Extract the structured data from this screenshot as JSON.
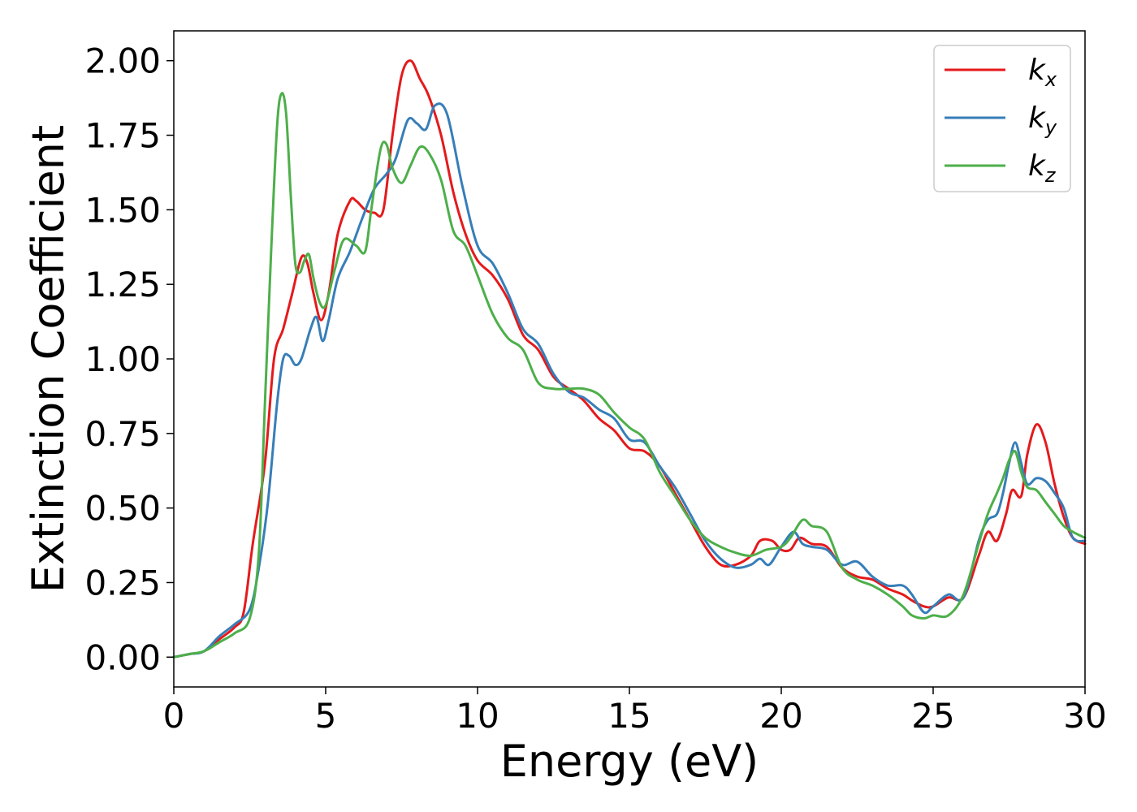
{
  "chart_data": {
    "type": "line",
    "xlabel": "Energy (eV)",
    "ylabel": "Extinction Coefficient",
    "xlim": [
      0,
      30
    ],
    "ylim": [
      -0.1,
      2.1
    ],
    "xticks": [
      0,
      5,
      10,
      15,
      20,
      25,
      30
    ],
    "xtick_labels": [
      "0",
      "5",
      "10",
      "15",
      "20",
      "25",
      "30"
    ],
    "yticks": [
      0,
      0.25,
      0.5,
      0.75,
      1.0,
      1.25,
      1.5,
      1.75,
      2.0
    ],
    "ytick_labels": [
      "0.00",
      "0.25",
      "0.50",
      "0.75",
      "1.00",
      "1.25",
      "1.50",
      "1.75",
      "2.00"
    ],
    "grid": false,
    "legend_position": "top-right",
    "series": [
      {
        "name": "k_x",
        "label_main": "k",
        "label_sub": "x",
        "color": "#e41a1c",
        "x": [
          0,
          0.5,
          1,
          1.5,
          2,
          2.3,
          2.6,
          3,
          3.3,
          3.6,
          3.9,
          4.2,
          4.4,
          4.6,
          4.85,
          5.1,
          5.4,
          5.8,
          6,
          6.3,
          6.6,
          6.9,
          7.2,
          7.5,
          7.8,
          8.1,
          8.4,
          8.8,
          9.2,
          9.6,
          10,
          10.5,
          11,
          11.5,
          12,
          12.5,
          13,
          13.5,
          14,
          14.5,
          15,
          15.5,
          16,
          16.5,
          17,
          17.5,
          18,
          18.5,
          19,
          19.3,
          19.7,
          20,
          20.3,
          20.6,
          21,
          21.5,
          22,
          22.5,
          23,
          23.5,
          24,
          24.3,
          24.7,
          25,
          25.5,
          26,
          26.5,
          26.8,
          27.1,
          27.4,
          27.6,
          27.9,
          28.1,
          28.4,
          28.7,
          29,
          29.3,
          29.6,
          30
        ],
        "y": [
          0,
          0.01,
          0.02,
          0.06,
          0.1,
          0.15,
          0.38,
          0.65,
          1.0,
          1.1,
          1.22,
          1.34,
          1.32,
          1.22,
          1.13,
          1.22,
          1.42,
          1.53,
          1.53,
          1.5,
          1.49,
          1.5,
          1.75,
          1.95,
          2.0,
          1.94,
          1.88,
          1.75,
          1.56,
          1.42,
          1.33,
          1.28,
          1.2,
          1.08,
          1.03,
          0.94,
          0.9,
          0.86,
          0.8,
          0.76,
          0.7,
          0.69,
          0.64,
          0.55,
          0.46,
          0.37,
          0.31,
          0.31,
          0.34,
          0.39,
          0.39,
          0.36,
          0.36,
          0.4,
          0.38,
          0.37,
          0.3,
          0.27,
          0.26,
          0.23,
          0.21,
          0.19,
          0.17,
          0.17,
          0.2,
          0.2,
          0.34,
          0.42,
          0.39,
          0.48,
          0.56,
          0.54,
          0.68,
          0.78,
          0.72,
          0.58,
          0.47,
          0.4,
          0.38
        ]
      },
      {
        "name": "k_y",
        "label_main": "k",
        "label_sub": "y",
        "color": "#377eb8",
        "x": [
          0,
          0.5,
          1,
          1.5,
          2,
          2.5,
          2.8,
          3.1,
          3.4,
          3.6,
          3.8,
          4.0,
          4.2,
          4.5,
          4.7,
          4.9,
          5.1,
          5.4,
          5.8,
          6.2,
          6.6,
          7,
          7.3,
          7.7,
          8,
          8.3,
          8.6,
          9,
          9.5,
          10,
          10.5,
          11,
          11.5,
          12,
          12.5,
          13,
          13.5,
          14,
          14.5,
          15,
          15.5,
          16,
          16.5,
          17,
          17.5,
          18,
          18.5,
          19,
          19.3,
          19.6,
          20,
          20.4,
          20.7,
          21,
          21.5,
          22,
          22.5,
          23,
          23.5,
          24,
          24.3,
          24.7,
          25,
          25.5,
          26,
          26.5,
          26.8,
          27.1,
          27.3,
          27.5,
          27.7,
          27.9,
          28.1,
          28.4,
          28.7,
          29,
          29.3,
          29.6,
          30
        ],
        "y": [
          0,
          0.01,
          0.02,
          0.07,
          0.11,
          0.16,
          0.3,
          0.52,
          0.85,
          1.0,
          1.01,
          0.98,
          1.0,
          1.1,
          1.14,
          1.06,
          1.13,
          1.27,
          1.36,
          1.47,
          1.57,
          1.62,
          1.67,
          1.8,
          1.79,
          1.77,
          1.85,
          1.82,
          1.58,
          1.38,
          1.32,
          1.22,
          1.1,
          1.05,
          0.95,
          0.89,
          0.87,
          0.83,
          0.8,
          0.73,
          0.72,
          0.64,
          0.57,
          0.48,
          0.39,
          0.33,
          0.3,
          0.31,
          0.33,
          0.31,
          0.37,
          0.42,
          0.38,
          0.37,
          0.36,
          0.31,
          0.32,
          0.27,
          0.24,
          0.24,
          0.21,
          0.15,
          0.17,
          0.21,
          0.2,
          0.39,
          0.46,
          0.48,
          0.55,
          0.65,
          0.72,
          0.65,
          0.58,
          0.6,
          0.59,
          0.55,
          0.5,
          0.4,
          0.39
        ]
      },
      {
        "name": "k_z",
        "label_main": "k",
        "label_sub": "z",
        "color": "#4daf4a",
        "x": [
          0,
          0.5,
          1,
          1.5,
          2,
          2.5,
          2.8,
          3.0,
          3.2,
          3.4,
          3.55,
          3.7,
          3.85,
          4.0,
          4.15,
          4.3,
          4.45,
          4.6,
          4.8,
          5.0,
          5.3,
          5.6,
          6.0,
          6.3,
          6.5,
          6.8,
          7,
          7.2,
          7.5,
          7.8,
          8.1,
          8.4,
          8.8,
          9.2,
          9.6,
          10,
          10.5,
          11,
          11.5,
          12,
          12.5,
          13,
          13.5,
          14,
          14.5,
          15,
          15.5,
          16,
          16.5,
          17,
          17.5,
          18,
          18.5,
          19,
          19.5,
          20,
          20.3,
          20.7,
          21,
          21.5,
          22,
          22.5,
          23,
          23.5,
          24,
          24.3,
          24.7,
          25,
          25.5,
          26,
          26.5,
          26.8,
          27.1,
          27.3,
          27.5,
          27.7,
          27.9,
          28.1,
          28.4,
          28.7,
          29,
          29.3,
          29.6,
          30
        ],
        "y": [
          0,
          0.01,
          0.02,
          0.05,
          0.08,
          0.13,
          0.35,
          0.85,
          1.35,
          1.78,
          1.89,
          1.82,
          1.55,
          1.32,
          1.29,
          1.33,
          1.35,
          1.27,
          1.19,
          1.18,
          1.3,
          1.4,
          1.38,
          1.36,
          1.5,
          1.7,
          1.72,
          1.64,
          1.59,
          1.65,
          1.71,
          1.69,
          1.6,
          1.43,
          1.38,
          1.28,
          1.15,
          1.07,
          1.03,
          0.92,
          0.9,
          0.9,
          0.9,
          0.88,
          0.82,
          0.77,
          0.73,
          0.62,
          0.54,
          0.46,
          0.4,
          0.37,
          0.35,
          0.34,
          0.36,
          0.37,
          0.4,
          0.46,
          0.44,
          0.42,
          0.3,
          0.26,
          0.24,
          0.21,
          0.17,
          0.14,
          0.13,
          0.14,
          0.14,
          0.21,
          0.38,
          0.48,
          0.55,
          0.6,
          0.66,
          0.69,
          0.62,
          0.57,
          0.56,
          0.52,
          0.48,
          0.44,
          0.42,
          0.4
        ]
      }
    ]
  }
}
